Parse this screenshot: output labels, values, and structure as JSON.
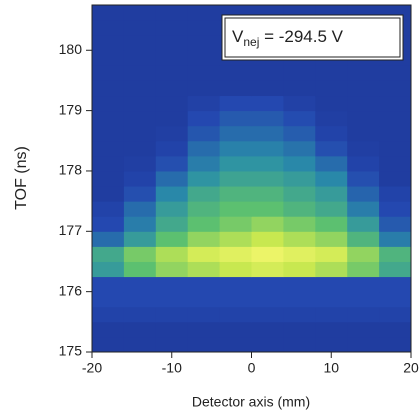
{
  "chart_data": {
    "type": "heatmap",
    "xlabel": "Detector axis (mm)",
    "ylabel": "TOF (ns)",
    "annotation": {
      "main": "V",
      "sub": "nej",
      "rest": " = -294.5 V"
    },
    "xlim": [
      -20,
      20
    ],
    "ylim": [
      175,
      180.75
    ],
    "xticks": [
      -20,
      -10,
      0,
      10,
      20
    ],
    "yticks": [
      175,
      176,
      177,
      178,
      179,
      180
    ],
    "xbins": [
      -20,
      -16,
      -12,
      -8,
      -4,
      0,
      4,
      8,
      12,
      16,
      20
    ],
    "ybins": [
      175,
      175.25,
      175.5,
      175.75,
      176,
      176.25,
      176.5,
      176.75,
      177,
      177.25,
      177.5,
      177.75,
      178,
      178.25,
      178.5,
      178.75,
      179,
      179.25,
      179.5,
      179.75,
      180,
      180.25,
      180.5,
      180.75
    ],
    "colorscale": [
      "#141a6e",
      "#2448b0",
      "#2a8fa8",
      "#5cc070",
      "#c8e850",
      "#f8f870"
    ],
    "z": [
      [
        0.15,
        0.15,
        0.15,
        0.15,
        0.15,
        0.15,
        0.15,
        0.15,
        0.15,
        0.15
      ],
      [
        0.15,
        0.15,
        0.15,
        0.15,
        0.15,
        0.15,
        0.15,
        0.15,
        0.15,
        0.15
      ],
      [
        0.18,
        0.18,
        0.18,
        0.18,
        0.18,
        0.18,
        0.18,
        0.18,
        0.18,
        0.18
      ],
      [
        0.2,
        0.2,
        0.2,
        0.2,
        0.2,
        0.2,
        0.2,
        0.2,
        0.2,
        0.2
      ],
      [
        0.2,
        0.2,
        0.2,
        0.2,
        0.2,
        0.2,
        0.2,
        0.2,
        0.2,
        0.2
      ],
      [
        0.45,
        0.6,
        0.7,
        0.75,
        0.8,
        0.85,
        0.8,
        0.75,
        0.65,
        0.5
      ],
      [
        0.5,
        0.65,
        0.75,
        0.85,
        0.9,
        0.95,
        0.9,
        0.85,
        0.7,
        0.55
      ],
      [
        0.3,
        0.45,
        0.6,
        0.7,
        0.75,
        0.8,
        0.75,
        0.7,
        0.55,
        0.35
      ],
      [
        0.2,
        0.35,
        0.5,
        0.6,
        0.65,
        0.7,
        0.65,
        0.6,
        0.45,
        0.25
      ],
      [
        0.18,
        0.3,
        0.45,
        0.55,
        0.6,
        0.6,
        0.55,
        0.5,
        0.35,
        0.2
      ],
      [
        0.15,
        0.22,
        0.38,
        0.5,
        0.55,
        0.55,
        0.5,
        0.45,
        0.28,
        0.18
      ],
      [
        0.15,
        0.18,
        0.3,
        0.42,
        0.48,
        0.48,
        0.45,
        0.38,
        0.22,
        0.15
      ],
      [
        0.15,
        0.16,
        0.22,
        0.35,
        0.42,
        0.42,
        0.38,
        0.3,
        0.18,
        0.15
      ],
      [
        0.15,
        0.15,
        0.18,
        0.3,
        0.36,
        0.36,
        0.32,
        0.22,
        0.16,
        0.15
      ],
      [
        0.15,
        0.15,
        0.16,
        0.24,
        0.3,
        0.3,
        0.26,
        0.18,
        0.15,
        0.15
      ],
      [
        0.15,
        0.15,
        0.15,
        0.2,
        0.25,
        0.25,
        0.21,
        0.16,
        0.15,
        0.15
      ],
      [
        0.15,
        0.15,
        0.15,
        0.17,
        0.2,
        0.2,
        0.17,
        0.15,
        0.15,
        0.15
      ],
      [
        0.15,
        0.15,
        0.15,
        0.15,
        0.15,
        0.15,
        0.15,
        0.15,
        0.15,
        0.15
      ],
      [
        0.15,
        0.15,
        0.15,
        0.15,
        0.15,
        0.15,
        0.15,
        0.15,
        0.15,
        0.15
      ],
      [
        0.15,
        0.15,
        0.15,
        0.15,
        0.15,
        0.15,
        0.15,
        0.15,
        0.15,
        0.15
      ],
      [
        0.15,
        0.15,
        0.15,
        0.15,
        0.15,
        0.15,
        0.15,
        0.15,
        0.15,
        0.15
      ],
      [
        0.15,
        0.15,
        0.15,
        0.15,
        0.15,
        0.15,
        0.15,
        0.15,
        0.15,
        0.15
      ],
      [
        0.15,
        0.15,
        0.15,
        0.15,
        0.15,
        0.15,
        0.15,
        0.15,
        0.15,
        0.15
      ]
    ]
  }
}
